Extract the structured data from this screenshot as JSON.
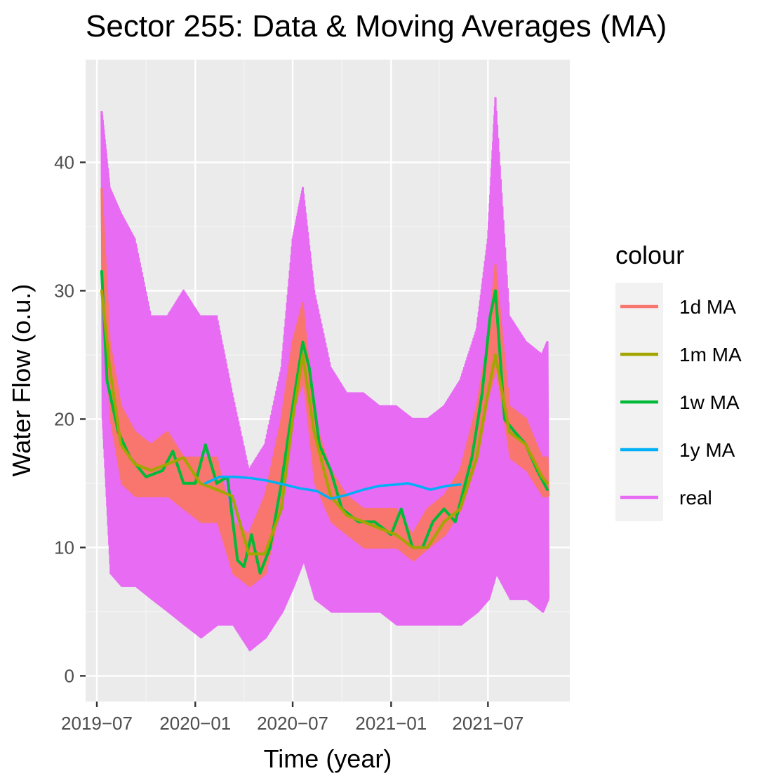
{
  "chart_data": {
    "type": "line",
    "title": "Sector 255: Data & Moving Averages (MA)",
    "xlabel": "Time (year)",
    "ylabel": "Water Flow (o.u.)",
    "x_type": "date",
    "xlim": [
      "2019-06-10",
      "2021-12-01"
    ],
    "ylim": [
      -2,
      48
    ],
    "x_ticks": [
      "2019-07-01",
      "2020-01-01",
      "2020-07-01",
      "2021-01-01",
      "2021-07-01"
    ],
    "x_tick_labels": [
      "2019−07",
      "2020−01",
      "2020−07",
      "2021−01",
      "2021−07"
    ],
    "y_ticks": [
      0,
      10,
      20,
      30,
      40
    ],
    "y_tick_labels": [
      "0",
      "10",
      "20",
      "30",
      "40"
    ],
    "grid": true,
    "legend": {
      "title": "colour",
      "position": "right",
      "entries": [
        "1d MA",
        "1m MA",
        "1w MA",
        "1y MA",
        "real"
      ]
    },
    "series": [
      {
        "name": "real",
        "color": "#E76BF3",
        "x": [
          "2019-07-10",
          "2019-07-25",
          "2019-08-15",
          "2019-09-10",
          "2019-10-10",
          "2019-11-10",
          "2019-12-10",
          "2020-01-10",
          "2020-02-10",
          "2020-03-10",
          "2020-04-10",
          "2020-05-10",
          "2020-06-10",
          "2020-07-01",
          "2020-07-20",
          "2020-08-10",
          "2020-09-10",
          "2020-10-10",
          "2020-11-10",
          "2020-12-10",
          "2021-01-10",
          "2021-02-10",
          "2021-03-10",
          "2021-04-10",
          "2021-05-10",
          "2021-06-10",
          "2021-07-01",
          "2021-07-15",
          "2021-08-10",
          "2021-09-10",
          "2021-10-10",
          "2021-10-20"
        ],
        "high": [
          44,
          38,
          36,
          34,
          28,
          28,
          30,
          28,
          28,
          22,
          16,
          18,
          24,
          34,
          38,
          30,
          24,
          22,
          22,
          21,
          21,
          20,
          20,
          21,
          23,
          27,
          34,
          45,
          28,
          26,
          25,
          26
        ],
        "low": [
          20,
          8,
          7,
          7,
          6,
          5,
          4,
          3,
          4,
          4,
          2,
          3,
          5,
          7,
          9,
          6,
          5,
          5,
          5,
          5,
          4,
          4,
          4,
          4,
          4,
          5,
          6,
          8,
          6,
          6,
          5,
          6
        ]
      },
      {
        "name": "1d MA",
        "color": "#F8766D",
        "x": [
          "2019-07-10",
          "2019-07-25",
          "2019-08-15",
          "2019-09-10",
          "2019-10-10",
          "2019-11-10",
          "2019-12-10",
          "2020-01-10",
          "2020-02-10",
          "2020-03-10",
          "2020-04-10",
          "2020-05-10",
          "2020-06-10",
          "2020-07-01",
          "2020-07-20",
          "2020-08-10",
          "2020-09-10",
          "2020-10-10",
          "2020-11-10",
          "2020-12-10",
          "2021-01-10",
          "2021-02-10",
          "2021-03-10",
          "2021-04-10",
          "2021-05-10",
          "2021-06-10",
          "2021-07-01",
          "2021-07-15",
          "2021-08-10",
          "2021-09-10",
          "2021-10-10",
          "2021-10-20"
        ],
        "high": [
          38,
          26,
          21,
          19,
          18,
          19,
          17,
          17,
          17,
          12,
          11,
          14,
          20,
          26,
          29,
          20,
          16,
          14,
          13,
          13,
          13,
          11,
          13,
          14,
          16,
          21,
          26,
          32,
          21,
          20,
          17,
          17
        ],
        "low": [
          30,
          20,
          15,
          14,
          14,
          14,
          13,
          12,
          12,
          8,
          7,
          8,
          14,
          21,
          23,
          15,
          12,
          11,
          10,
          10,
          10,
          9,
          10,
          11,
          13,
          17,
          22,
          24,
          17,
          16,
          14,
          14
        ]
      },
      {
        "name": "1w MA",
        "color": "#00BA38",
        "x": [
          "2019-07-10",
          "2019-07-20",
          "2019-08-10",
          "2019-09-01",
          "2019-10-01",
          "2019-11-01",
          "2019-11-20",
          "2019-12-10",
          "2020-01-01",
          "2020-01-20",
          "2020-02-10",
          "2020-03-01",
          "2020-03-20",
          "2020-04-01",
          "2020-04-15",
          "2020-05-01",
          "2020-05-20",
          "2020-06-10",
          "2020-07-01",
          "2020-07-20",
          "2020-08-01",
          "2020-08-20",
          "2020-09-10",
          "2020-10-01",
          "2020-11-01",
          "2020-12-01",
          "2021-01-01",
          "2021-01-20",
          "2021-02-10",
          "2021-03-01",
          "2021-03-20",
          "2021-04-10",
          "2021-05-01",
          "2021-06-01",
          "2021-06-20",
          "2021-07-05",
          "2021-07-15",
          "2021-08-01",
          "2021-08-20",
          "2021-09-10",
          "2021-10-01",
          "2021-10-20"
        ],
        "y": [
          31.5,
          23,
          19,
          17,
          15.5,
          16,
          17.5,
          15,
          15,
          18,
          15,
          15.5,
          9,
          8.5,
          11,
          8,
          10,
          15,
          21,
          26,
          24,
          18,
          16,
          13,
          12,
          12,
          11,
          13,
          10,
          10,
          12,
          13,
          12,
          17,
          22,
          28,
          30,
          20,
          19,
          18,
          16,
          14.5
        ]
      },
      {
        "name": "1m MA",
        "color": "#A3A500",
        "x": [
          "2019-07-10",
          "2019-07-25",
          "2019-08-15",
          "2019-09-10",
          "2019-10-10",
          "2019-11-10",
          "2019-12-10",
          "2020-01-10",
          "2020-02-10",
          "2020-03-10",
          "2020-04-10",
          "2020-05-10",
          "2020-06-10",
          "2020-07-01",
          "2020-07-20",
          "2020-08-10",
          "2020-09-10",
          "2020-10-10",
          "2020-11-10",
          "2020-12-10",
          "2021-01-10",
          "2021-02-10",
          "2021-03-10",
          "2021-04-10",
          "2021-05-10",
          "2021-06-10",
          "2021-07-01",
          "2021-07-15",
          "2021-08-10",
          "2021-09-10",
          "2021-10-10",
          "2021-10-20"
        ],
        "y": [
          30,
          24,
          18,
          16.5,
          16,
          16.5,
          17,
          15,
          14.5,
          14,
          9.5,
          9.5,
          13,
          20,
          25,
          19,
          14,
          12.5,
          12,
          11.5,
          11,
          10,
          10,
          12,
          13,
          17,
          22,
          25,
          19,
          18,
          15.5,
          15
        ]
      },
      {
        "name": "1y MA",
        "color": "#00B0F6",
        "x": [
          "2020-01-20",
          "2020-02-15",
          "2020-03-15",
          "2020-04-15",
          "2020-05-15",
          "2020-06-15",
          "2020-07-15",
          "2020-08-15",
          "2020-09-10",
          "2020-10-10",
          "2020-11-10",
          "2020-12-10",
          "2021-01-10",
          "2021-02-01",
          "2021-02-20",
          "2021-03-15",
          "2021-04-15",
          "2021-05-10"
        ],
        "y": [
          15,
          15.5,
          15.5,
          15.4,
          15.2,
          14.9,
          14.6,
          14.4,
          13.8,
          14.1,
          14.5,
          14.8,
          14.9,
          15,
          14.8,
          14.5,
          14.8,
          14.9
        ]
      }
    ]
  }
}
